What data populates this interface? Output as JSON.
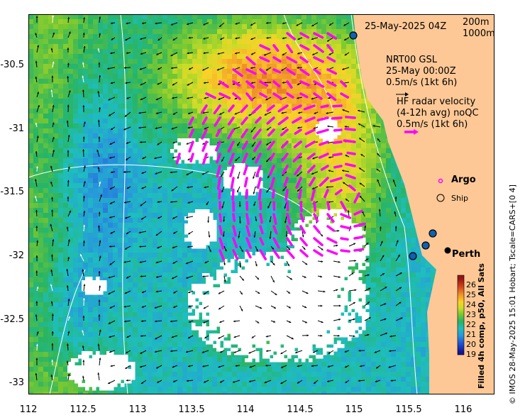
{
  "header": {
    "timestamp": "25-May-2025 04Z",
    "depth_labels": [
      "200m",
      "1000m"
    ]
  },
  "legend": {
    "gsl": [
      "NRT00 GSL",
      "25-May 00:00Z",
      "0.5m/s (1kt 6h)"
    ],
    "hf_radar": [
      "HF radar velocity",
      "(4-12h avg) noQC",
      "0.5m/s (1kt 6h)"
    ],
    "argo_label": "Argo",
    "ship_label": "Ship"
  },
  "map": {
    "x_ticks": [
      "112",
      "112.5",
      "113",
      "113.5",
      "114",
      "114.5",
      "115",
      "115.5",
      "116"
    ],
    "y_ticks": [
      "-30.5",
      "-31",
      "-31.5",
      "-32",
      "-32.5",
      "-33"
    ],
    "city": "Perth",
    "land_color": "#fdc896",
    "hf_vector_color": "#ff00ff"
  },
  "colorbar": {
    "ticks": [
      "26",
      "25",
      "24",
      "23",
      "22",
      "21",
      "20",
      "19"
    ],
    "title": "Filled 4h comp, p50, All Sats"
  },
  "credit": "© IMOS 28-May-2025 15:01 Hobart; Tscale=CARS+[0 4]"
}
